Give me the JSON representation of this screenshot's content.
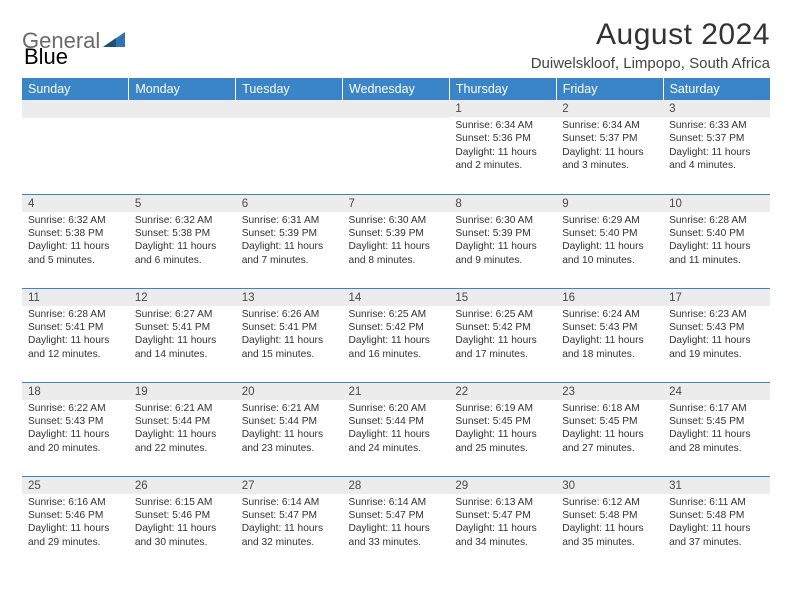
{
  "brand": {
    "general": "General",
    "blue": "Blue"
  },
  "title": "August 2024",
  "location": "Duiwelskloof, Limpopo, South Africa",
  "colors": {
    "header_bg": "#3a85c8",
    "header_text": "#ffffff",
    "daynum_bg": "#ececec",
    "cell_border": "#3a85c8",
    "text": "#333333",
    "brand_grey": "#6a6a6a",
    "brand_blue": "#3a7fc4"
  },
  "dayHeaders": [
    "Sunday",
    "Monday",
    "Tuesday",
    "Wednesday",
    "Thursday",
    "Friday",
    "Saturday"
  ],
  "weeks": [
    [
      {
        "n": "",
        "sr": "",
        "ss": "",
        "dl": ""
      },
      {
        "n": "",
        "sr": "",
        "ss": "",
        "dl": ""
      },
      {
        "n": "",
        "sr": "",
        "ss": "",
        "dl": ""
      },
      {
        "n": "",
        "sr": "",
        "ss": "",
        "dl": ""
      },
      {
        "n": "1",
        "sr": "6:34 AM",
        "ss": "5:36 PM",
        "dl": "11 hours and 2 minutes."
      },
      {
        "n": "2",
        "sr": "6:34 AM",
        "ss": "5:37 PM",
        "dl": "11 hours and 3 minutes."
      },
      {
        "n": "3",
        "sr": "6:33 AM",
        "ss": "5:37 PM",
        "dl": "11 hours and 4 minutes."
      }
    ],
    [
      {
        "n": "4",
        "sr": "6:32 AM",
        "ss": "5:38 PM",
        "dl": "11 hours and 5 minutes."
      },
      {
        "n": "5",
        "sr": "6:32 AM",
        "ss": "5:38 PM",
        "dl": "11 hours and 6 minutes."
      },
      {
        "n": "6",
        "sr": "6:31 AM",
        "ss": "5:39 PM",
        "dl": "11 hours and 7 minutes."
      },
      {
        "n": "7",
        "sr": "6:30 AM",
        "ss": "5:39 PM",
        "dl": "11 hours and 8 minutes."
      },
      {
        "n": "8",
        "sr": "6:30 AM",
        "ss": "5:39 PM",
        "dl": "11 hours and 9 minutes."
      },
      {
        "n": "9",
        "sr": "6:29 AM",
        "ss": "5:40 PM",
        "dl": "11 hours and 10 minutes."
      },
      {
        "n": "10",
        "sr": "6:28 AM",
        "ss": "5:40 PM",
        "dl": "11 hours and 11 minutes."
      }
    ],
    [
      {
        "n": "11",
        "sr": "6:28 AM",
        "ss": "5:41 PM",
        "dl": "11 hours and 12 minutes."
      },
      {
        "n": "12",
        "sr": "6:27 AM",
        "ss": "5:41 PM",
        "dl": "11 hours and 14 minutes."
      },
      {
        "n": "13",
        "sr": "6:26 AM",
        "ss": "5:41 PM",
        "dl": "11 hours and 15 minutes."
      },
      {
        "n": "14",
        "sr": "6:25 AM",
        "ss": "5:42 PM",
        "dl": "11 hours and 16 minutes."
      },
      {
        "n": "15",
        "sr": "6:25 AM",
        "ss": "5:42 PM",
        "dl": "11 hours and 17 minutes."
      },
      {
        "n": "16",
        "sr": "6:24 AM",
        "ss": "5:43 PM",
        "dl": "11 hours and 18 minutes."
      },
      {
        "n": "17",
        "sr": "6:23 AM",
        "ss": "5:43 PM",
        "dl": "11 hours and 19 minutes."
      }
    ],
    [
      {
        "n": "18",
        "sr": "6:22 AM",
        "ss": "5:43 PM",
        "dl": "11 hours and 20 minutes."
      },
      {
        "n": "19",
        "sr": "6:21 AM",
        "ss": "5:44 PM",
        "dl": "11 hours and 22 minutes."
      },
      {
        "n": "20",
        "sr": "6:21 AM",
        "ss": "5:44 PM",
        "dl": "11 hours and 23 minutes."
      },
      {
        "n": "21",
        "sr": "6:20 AM",
        "ss": "5:44 PM",
        "dl": "11 hours and 24 minutes."
      },
      {
        "n": "22",
        "sr": "6:19 AM",
        "ss": "5:45 PM",
        "dl": "11 hours and 25 minutes."
      },
      {
        "n": "23",
        "sr": "6:18 AM",
        "ss": "5:45 PM",
        "dl": "11 hours and 27 minutes."
      },
      {
        "n": "24",
        "sr": "6:17 AM",
        "ss": "5:45 PM",
        "dl": "11 hours and 28 minutes."
      }
    ],
    [
      {
        "n": "25",
        "sr": "6:16 AM",
        "ss": "5:46 PM",
        "dl": "11 hours and 29 minutes."
      },
      {
        "n": "26",
        "sr": "6:15 AM",
        "ss": "5:46 PM",
        "dl": "11 hours and 30 minutes."
      },
      {
        "n": "27",
        "sr": "6:14 AM",
        "ss": "5:47 PM",
        "dl": "11 hours and 32 minutes."
      },
      {
        "n": "28",
        "sr": "6:14 AM",
        "ss": "5:47 PM",
        "dl": "11 hours and 33 minutes."
      },
      {
        "n": "29",
        "sr": "6:13 AM",
        "ss": "5:47 PM",
        "dl": "11 hours and 34 minutes."
      },
      {
        "n": "30",
        "sr": "6:12 AM",
        "ss": "5:48 PM",
        "dl": "11 hours and 35 minutes."
      },
      {
        "n": "31",
        "sr": "6:11 AM",
        "ss": "5:48 PM",
        "dl": "11 hours and 37 minutes."
      }
    ]
  ],
  "labels": {
    "sunrise": "Sunrise:",
    "sunset": "Sunset:",
    "daylight": "Daylight:"
  }
}
